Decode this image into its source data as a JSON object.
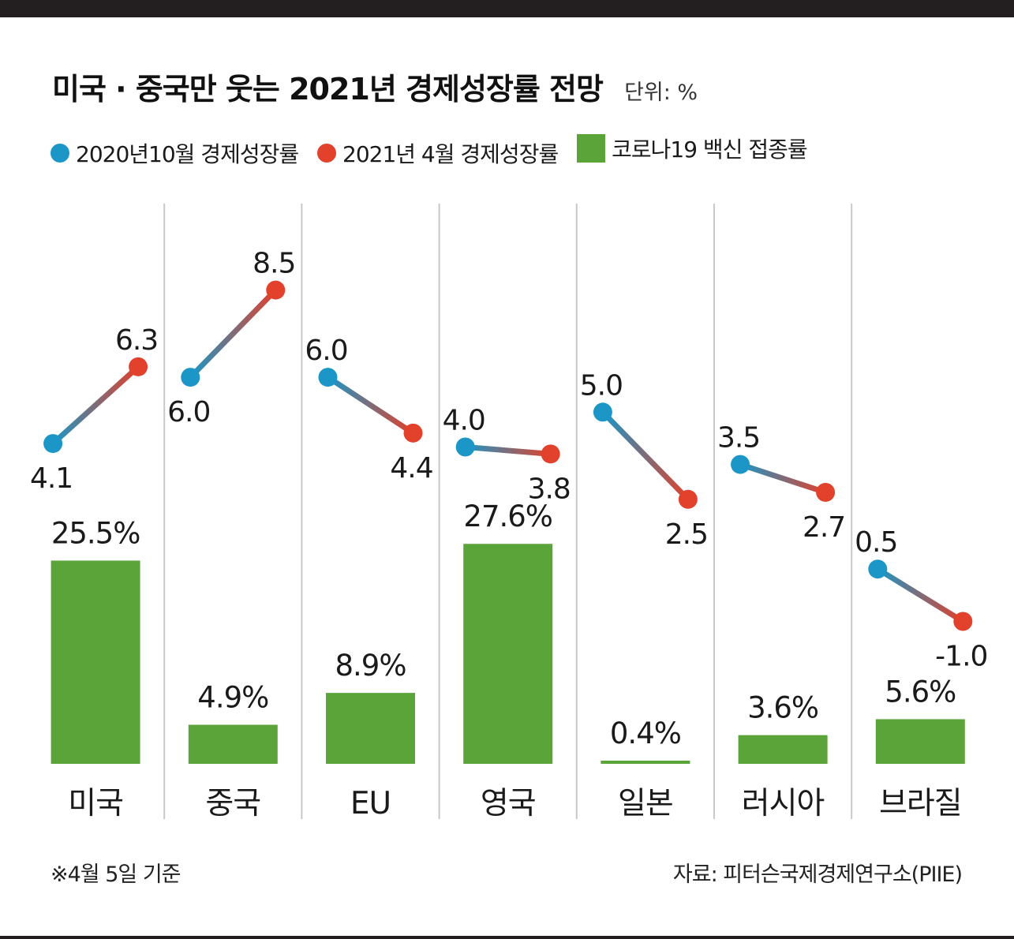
{
  "title": "미국 · 중국만 웃는 2021년 경제성장률 전망",
  "unit_label": "단위: %",
  "legend": [
    {
      "label": "2020년10월 경제성장률",
      "shape": "dot",
      "color": "#1b96c6"
    },
    {
      "label": "2021년 4월 경제성장률",
      "shape": "dot",
      "color": "#e2412b"
    },
    {
      "label": "코로나19 백신 접종률",
      "shape": "square",
      "color": "#5ba43a"
    }
  ],
  "footnote": "※4월 5일 기준",
  "source": "자료: 피터슨국제경제연구소(PIIE)",
  "chart_data": {
    "type": "bar",
    "categories": [
      "미국",
      "중국",
      "EU",
      "영국",
      "일본",
      "러시아",
      "브라질"
    ],
    "series": [
      {
        "name": "2020년10월 경제성장률",
        "type": "dot",
        "color": "#1b96c6",
        "values": [
          4.1,
          6.0,
          6.0,
          4.0,
          5.0,
          3.5,
          0.5
        ],
        "labels": [
          "4.1",
          "6.0",
          "6.0",
          "4.0",
          "5.0",
          "3.5",
          "0.5"
        ]
      },
      {
        "name": "2021년 4월 경제성장률",
        "type": "dot",
        "color": "#e2412b",
        "values": [
          6.3,
          8.5,
          4.4,
          3.8,
          2.5,
          2.7,
          -1.0
        ],
        "labels": [
          "6.3",
          "8.5",
          "4.4",
          "3.8",
          "2.5",
          "2.7",
          "-1.0"
        ]
      },
      {
        "name": "코로나19 백신 접종률",
        "type": "bar",
        "color": "#5ba43a",
        "values": [
          25.5,
          4.9,
          8.9,
          27.6,
          0.4,
          3.6,
          5.6
        ],
        "labels": [
          "25.5%",
          "4.9%",
          "8.9%",
          "27.6%",
          "0.4%",
          "3.6%",
          "5.6%"
        ]
      }
    ],
    "grid": false,
    "legend_position": "top"
  }
}
